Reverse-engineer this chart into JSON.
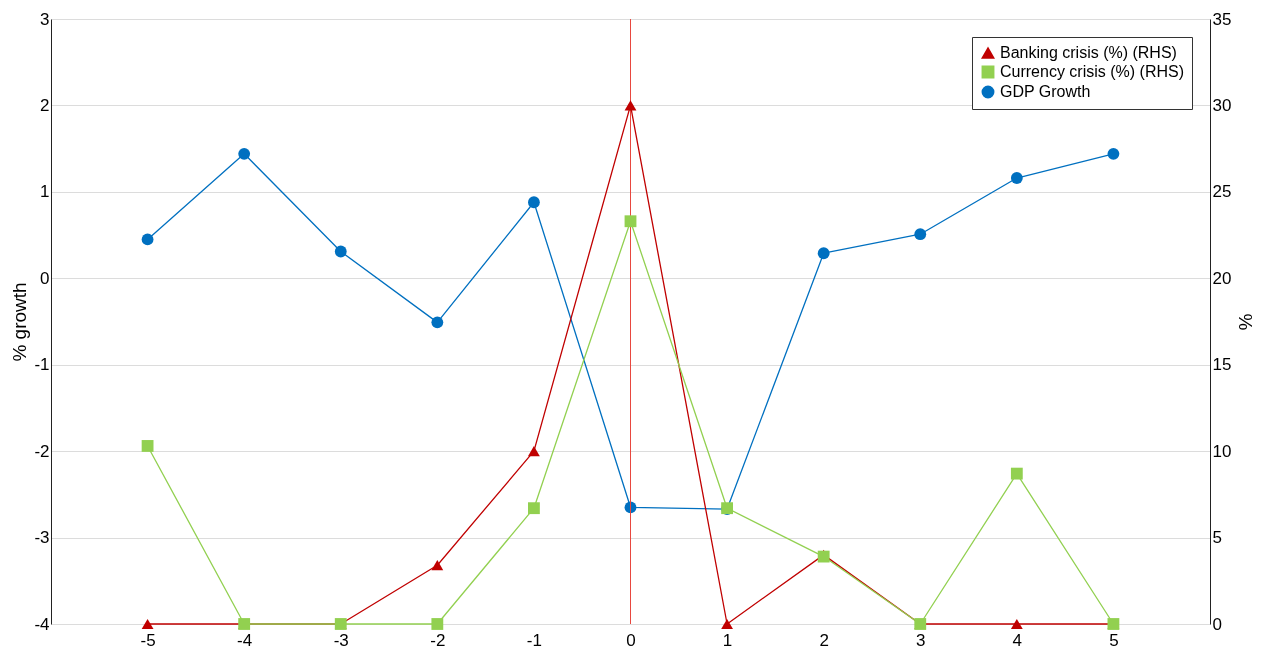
{
  "chart_data": {
    "type": "line",
    "ylabel": "% growth",
    "y2label": "%",
    "x": [
      -5,
      -4,
      -3,
      -2,
      -1,
      0,
      1,
      2,
      3,
      4,
      5
    ],
    "xlim": [
      -6,
      6
    ],
    "xticks": [
      -5,
      -4,
      -3,
      -2,
      -1,
      0,
      1,
      2,
      3,
      4,
      5
    ],
    "ylim": [
      -4,
      3
    ],
    "yticks": [
      -4,
      -3,
      -2,
      -1,
      0,
      1,
      2,
      3
    ],
    "y2lim": [
      0,
      35
    ],
    "y2ticks": [
      0,
      5,
      10,
      15,
      20,
      25,
      30,
      35
    ],
    "grid": "y",
    "legend": "top right",
    "line_style": "solid",
    "ref_lines": [
      {
        "axis": "x",
        "value": 0,
        "color": "#e8473f"
      }
    ],
    "series": [
      {
        "name": "Banking crisis (%) (RHS)",
        "color": "#c00000",
        "axis": "y2",
        "marker": "triangle",
        "values": [
          0,
          0,
          0,
          3.4,
          10,
          30,
          0,
          4,
          0,
          0,
          0
        ]
      },
      {
        "name": "Currency crisis (%) (RHS)",
        "color": "#92d050",
        "axis": "y2",
        "marker": "square",
        "values": [
          10.3,
          0,
          0,
          0,
          6.7,
          23.3,
          6.7,
          3.9,
          0,
          8.7,
          0
        ]
      },
      {
        "name": "GDP Growth",
        "color": "#0070c0",
        "marker": "circle",
        "values": [
          0.45,
          1.44,
          0.31,
          -0.51,
          0.88,
          -2.65,
          -2.67,
          0.29,
          0.51,
          1.16,
          1.44
        ]
      }
    ]
  }
}
